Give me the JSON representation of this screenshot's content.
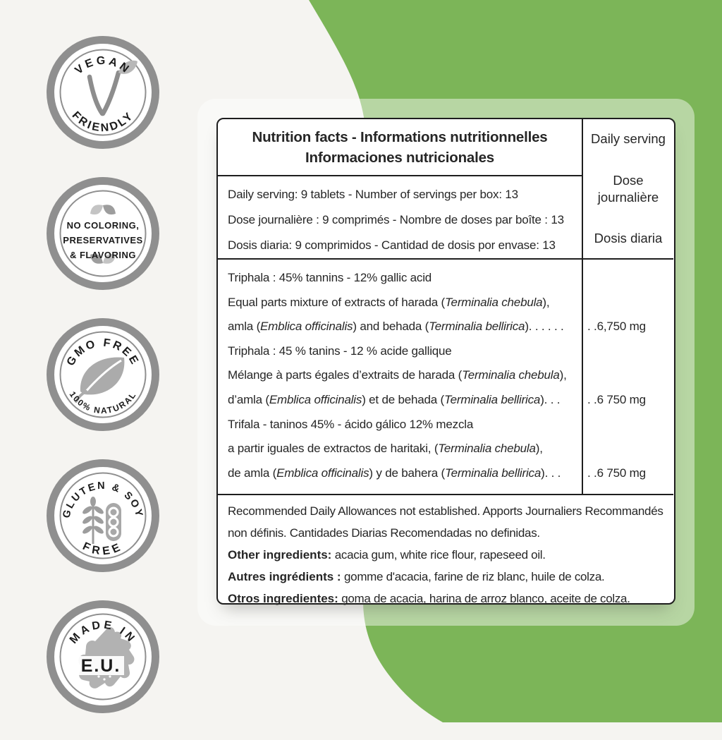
{
  "colors": {
    "page_bg": "#f5f4f1",
    "green": "#7cb558",
    "overlay": "rgba(255,255,255,0.45)",
    "line": "#1e1e1e",
    "ink": "#262626",
    "ring": "#8f8f8f",
    "icon": "#a9a9a9",
    "icon_light": "#c2c2c2"
  },
  "badges": [
    {
      "id": "vegan-friendly",
      "icon": "vegan-leaf-v-icon",
      "top": "VEGAN",
      "bottom": "FRIENDLY"
    },
    {
      "id": "no-additives",
      "icon": "sprout-leaves-icon",
      "lines": [
        "NO COLORING,",
        "PRESERVATIVES",
        "& FLAVORING"
      ]
    },
    {
      "id": "gmo-free",
      "icon": "leaf-icon",
      "top": "GMO FREE",
      "bottom": "100% NATURAL"
    },
    {
      "id": "gluten-soy-free",
      "icon": "wheat-and-soy-icon",
      "top": "GLUTEN & SOY",
      "bottom": "FREE"
    },
    {
      "id": "made-in-eu",
      "icon": "europe-map-icon",
      "top": "MADE IN",
      "center": "E.U."
    }
  ],
  "panel": {
    "title_line1": "Nutrition facts - Informations nutritionnelles",
    "title_line2": "Informaciones nutricionales",
    "serving_column": {
      "en": "Daily serving",
      "fr": "Dose journalière",
      "es": "Dosis diaria"
    },
    "serving_lines": [
      "Daily serving: 9 tablets - Number of servings per box: 13",
      "Dose journalière : 9 comprimés - Nombre de doses par boîte : 13",
      "Dosis diaria: 9 comprimidos - Cantidad de dosis por envase: 13"
    ],
    "value_leader": ". .",
    "rows": [
      {
        "text": "Triphala : 45% tannins - 12% gallic acid",
        "leader": "",
        "value": ""
      },
      {
        "text": "Equal parts mixture of extracts of harada (*Terminalia chebula*),",
        "leader": "",
        "value": ""
      },
      {
        "text": "amla (*Emblica officinalis*) and behada (*Terminalia bellirica*).",
        "leader": "  . . . . .",
        "value": "6,750 mg"
      },
      {
        "text": "Triphala : 45 % tanins - 12 % acide gallique",
        "leader": "",
        "value": ""
      },
      {
        "text": "Mélange à parts égales d’extraits de harada (*Terminalia chebula*),",
        "leader": "",
        "value": ""
      },
      {
        "text": "d’amla (*Emblica officinalis*) et de behada (*Terminalia bellirica*).",
        "leader": "  . .",
        "value": "6 750 mg"
      },
      {
        "text": "Trifala - taninos 45% - ácido gálico 12% mezcla",
        "leader": "",
        "value": ""
      },
      {
        "text": "a partir iguales de extractos de haritaki, (*Terminalia chebula*),",
        "leader": "",
        "value": ""
      },
      {
        "text": "de amla (*Emblica officinalis*) y de bahera (*Terminalia bellirica*).",
        "leader": "  . .",
        "value": "6 750 mg"
      }
    ],
    "footnotes": [
      "Recommended Daily Allowances not established. Apports Journaliers Recommandés",
      "non définis. Cantidades Diarias Recomendadas no definidas.",
      "**Other ingredients:** acacia gum, white rice flour, rapeseed oil.",
      "**Autres ingrédients :** gomme d'acacia, farine de riz blanc, huile de colza.",
      "**Otros ingredientes:** goma de acacia, harina de arroz blanco, aceite de colza."
    ]
  }
}
